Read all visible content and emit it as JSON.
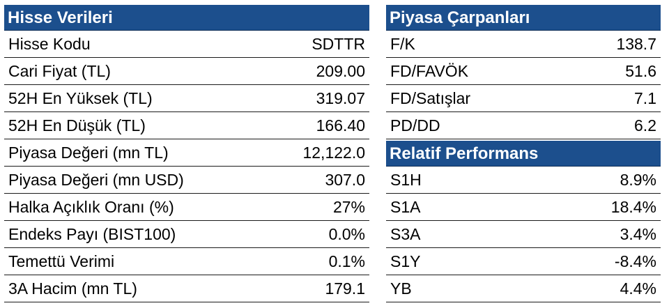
{
  "hisse_verileri": {
    "title": "Hisse Verileri",
    "rows": [
      {
        "label": "Hisse Kodu",
        "value": "SDTTR"
      },
      {
        "label": "Cari Fiyat (TL)",
        "value": "209.00"
      },
      {
        "label": "52H En Yüksek (TL)",
        "value": "319.07"
      },
      {
        "label": "52H En Düşük (TL)",
        "value": "166.40"
      },
      {
        "label": "Piyasa Değeri (mn TL)",
        "value": "12,122.0"
      },
      {
        "label": "Piyasa Değeri (mn USD)",
        "value": "307.0"
      },
      {
        "label": "Halka Açıklık Oranı (%)",
        "value": "27%"
      },
      {
        "label": "Endeks Payı (BIST100)",
        "value": "0.0%"
      },
      {
        "label": "Temettü Verimi",
        "value": "0.1%"
      },
      {
        "label": "3A Hacim (mn TL)",
        "value": "179.1"
      }
    ]
  },
  "piyasa_carpanlari": {
    "title": "Piyasa Çarpanları",
    "rows": [
      {
        "label": "F/K",
        "value": "138.7"
      },
      {
        "label": "FD/FAVÖK",
        "value": "51.6"
      },
      {
        "label": "FD/Satışlar",
        "value": "7.1"
      },
      {
        "label": "PD/DD",
        "value": "6.2"
      }
    ]
  },
  "relatif_performans": {
    "title": "Relatif Performans",
    "rows": [
      {
        "label": "S1H",
        "value": "8.9%"
      },
      {
        "label": "S1A",
        "value": "18.4%"
      },
      {
        "label": "S3A",
        "value": "3.4%"
      },
      {
        "label": "S1Y",
        "value": "-8.4%"
      },
      {
        "label": "YB",
        "value": "4.4%"
      }
    ]
  },
  "colors": {
    "header_bg": "#1c4f8d",
    "header_text": "#ffffff"
  }
}
